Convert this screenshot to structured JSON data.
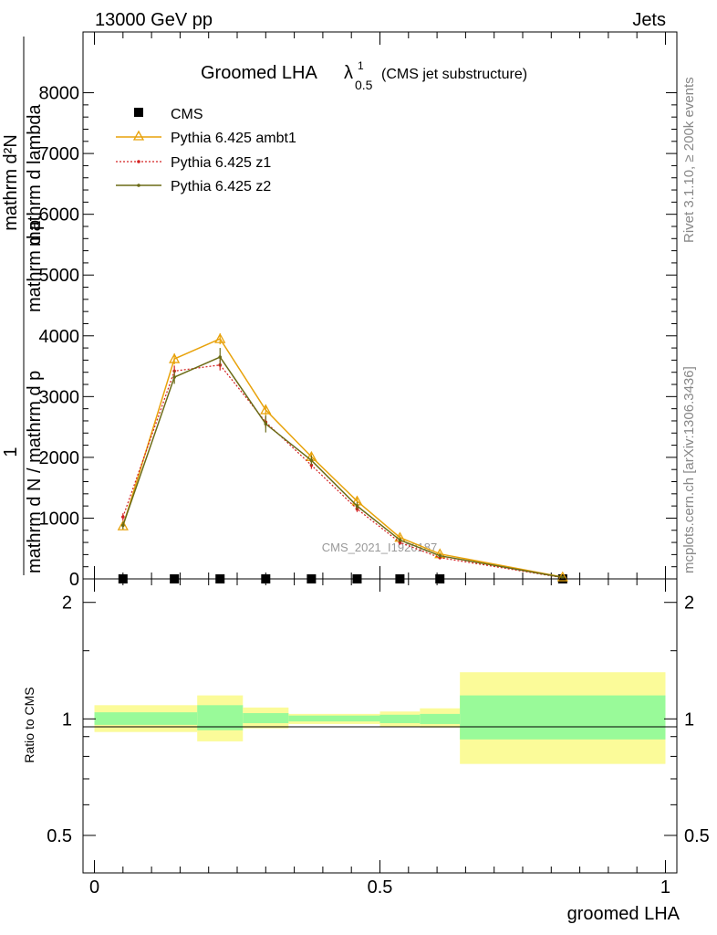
{
  "header": {
    "left": "13000 GeV pp",
    "right": "Jets"
  },
  "side_labels": {
    "rivet": "Rivet 3.1.10, ≥ 200k events",
    "mcplots": "mcplots.cern.ch [arXiv:1306.3436]"
  },
  "title": {
    "main": "Groomed LHA",
    "lambda": "λ",
    "sup": "1",
    "sub": "0.5",
    "note": "(CMS jet substructure)"
  },
  "watermark": "CMS_2021_I1920187",
  "y_title": {
    "one": "1",
    "numerator": "mathrm d²N",
    "denominator_1": "mathrm d N / mathrm d p",
    "denominator_2": "mathrm d p",
    "denominator_3": "mathrm d lambda"
  },
  "ratio_ylabel": "Ratio to CMS",
  "xlabel": "groomed LHA",
  "colors": {
    "ambt1": "#e8a20a",
    "z1": "#d42020",
    "z2": "#6b6b16",
    "band_inner": "#99fa99",
    "band_outer": "#fbfb99"
  },
  "chart_data": [
    {
      "type": "line",
      "panel": "main",
      "x": [
        0.05,
        0.14,
        0.22,
        0.3,
        0.38,
        0.46,
        0.535,
        0.605,
        0.82
      ],
      "xlim": [
        -0.02,
        1.02
      ],
      "ylim": [
        0,
        9000
      ],
      "yticks": [
        {
          "v": 0,
          "label": "0"
        },
        {
          "v": 1000,
          "label": "1000"
        },
        {
          "v": 2000,
          "label": "2000"
        },
        {
          "v": 3000,
          "label": "3000"
        },
        {
          "v": 4000,
          "label": "4000"
        },
        {
          "v": 5000,
          "label": "5000"
        },
        {
          "v": 6000,
          "label": "6000"
        },
        {
          "v": 7000,
          "label": "7000"
        },
        {
          "v": 8000,
          "label": "8000"
        }
      ],
      "series": [
        {
          "name": "CMS",
          "key": "cms",
          "values": [
            0,
            0,
            0,
            0,
            0,
            0,
            0,
            0,
            0
          ]
        },
        {
          "name": "Pythia 6.425 ambt1",
          "key": "ambt1",
          "values": [
            870,
            3620,
            3950,
            2780,
            2010,
            1280,
            680,
            410,
            30
          ],
          "errors": [
            60,
            90,
            90,
            90,
            60,
            50,
            40,
            30,
            10
          ]
        },
        {
          "name": "Pythia 6.425 z1",
          "key": "z1",
          "values": [
            1020,
            3420,
            3520,
            2580,
            1870,
            1150,
            600,
            350,
            20
          ],
          "errors": [
            60,
            90,
            90,
            90,
            60,
            50,
            40,
            30,
            10
          ]
        },
        {
          "name": "Pythia 6.425 z2",
          "key": "z2",
          "values": [
            880,
            3320,
            3650,
            2550,
            1950,
            1200,
            640,
            380,
            25
          ],
          "errors": [
            60,
            110,
            150,
            140,
            80,
            60,
            40,
            30,
            10
          ]
        }
      ]
    },
    {
      "type": "area",
      "panel": "ratio",
      "ylabel": "Ratio to CMS",
      "ylim": [
        0.4,
        2.3
      ],
      "yscale": "log",
      "yticks": [
        {
          "v": 0.5,
          "label": "0.5"
        },
        {
          "v": 1,
          "label": "1"
        },
        {
          "v": 2,
          "label": "2"
        }
      ],
      "xticks": [
        {
          "v": 0,
          "label": "0"
        },
        {
          "v": 0.5,
          "label": "0.5"
        },
        {
          "v": 1,
          "label": "1"
        }
      ],
      "bins": [
        {
          "lo": 0.0,
          "hi": 0.18,
          "inner": [
            0.965,
            1.04
          ],
          "outer": [
            0.925,
            1.085
          ]
        },
        {
          "lo": 0.18,
          "hi": 0.26,
          "inner": [
            0.935,
            1.085
          ],
          "outer": [
            0.875,
            1.15
          ]
        },
        {
          "lo": 0.26,
          "hi": 0.34,
          "inner": [
            0.975,
            1.035
          ],
          "outer": [
            0.945,
            1.07
          ]
        },
        {
          "lo": 0.34,
          "hi": 0.5,
          "inner": [
            0.985,
            1.02
          ],
          "outer": [
            0.97,
            1.03
          ]
        },
        {
          "lo": 0.5,
          "hi": 0.57,
          "inner": [
            0.975,
            1.025
          ],
          "outer": [
            0.955,
            1.045
          ]
        },
        {
          "lo": 0.57,
          "hi": 0.64,
          "inner": [
            0.97,
            1.03
          ],
          "outer": [
            0.95,
            1.065
          ]
        },
        {
          "lo": 0.64,
          "hi": 1.0,
          "inner": [
            0.885,
            1.15
          ],
          "outer": [
            0.765,
            1.32
          ]
        }
      ]
    }
  ]
}
